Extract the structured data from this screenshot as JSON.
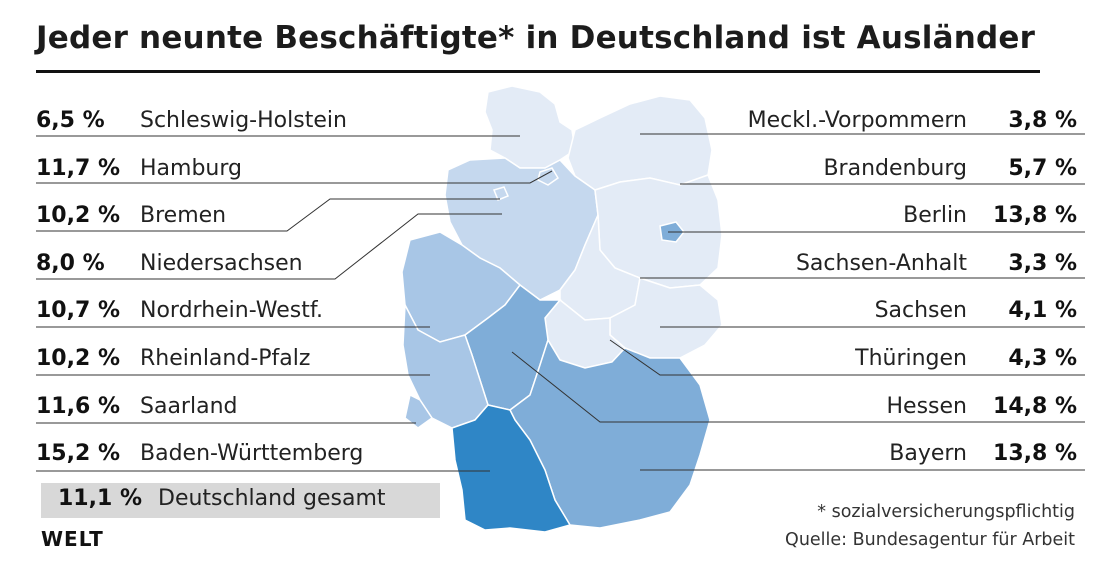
{
  "title": "Jeder neunte Beschäftigte* in Deutschland ist Ausländer",
  "chart_data": {
    "type": "table",
    "title": "Jeder neunte Beschäftigte* in Deutschland ist Ausländer",
    "unit": "%",
    "left": [
      {
        "label": "Schleswig-Holstein",
        "value_text": "6,5 %",
        "value": 6.5
      },
      {
        "label": "Hamburg",
        "value_text": "11,7 %",
        "value": 11.7
      },
      {
        "label": "Bremen",
        "value_text": "10,2 %",
        "value": 10.2
      },
      {
        "label": "Niedersachsen",
        "value_text": "8,0 %",
        "value": 8.0
      },
      {
        "label": "Nordrhein-Westf.",
        "value_text": "10,7 %",
        "value": 10.7
      },
      {
        "label": "Rheinland-Pfalz",
        "value_text": "10,2 %",
        "value": 10.2
      },
      {
        "label": "Saarland",
        "value_text": "11,6 %",
        "value": 11.6
      },
      {
        "label": "Baden-Württemberg",
        "value_text": "15,2 %",
        "value": 15.2
      }
    ],
    "right": [
      {
        "label": "Meckl.-Vorpommern",
        "value_text": "3,8 %",
        "value": 3.8
      },
      {
        "label": "Brandenburg",
        "value_text": "5,7 %",
        "value": 5.7
      },
      {
        "label": "Berlin",
        "value_text": "13,8 %",
        "value": 13.8
      },
      {
        "label": "Sachsen-Anhalt",
        "value_text": "3,3 %",
        "value": 3.3
      },
      {
        "label": "Sachsen",
        "value_text": "4,1 %",
        "value": 4.1
      },
      {
        "label": "Thüringen",
        "value_text": "4,3 %",
        "value": 4.3
      },
      {
        "label": "Hessen",
        "value_text": "14,8 %",
        "value": 14.8
      },
      {
        "label": "Bayern",
        "value_text": "13,8 %",
        "value": 13.8
      }
    ],
    "total": {
      "label": "Deutschland gesamt",
      "value_text": "11,1 %",
      "value": 11.1
    },
    "color_scale": [
      "#e3ebf6",
      "#c5d8ee",
      "#a8c6e6",
      "#7fadd8",
      "#3b8bc8",
      "#2f86c6"
    ]
  },
  "footnote": "* sozialversicherungspflichtig",
  "source": "Quelle: Bundesagentur für Arbeit",
  "logo": "WELT"
}
